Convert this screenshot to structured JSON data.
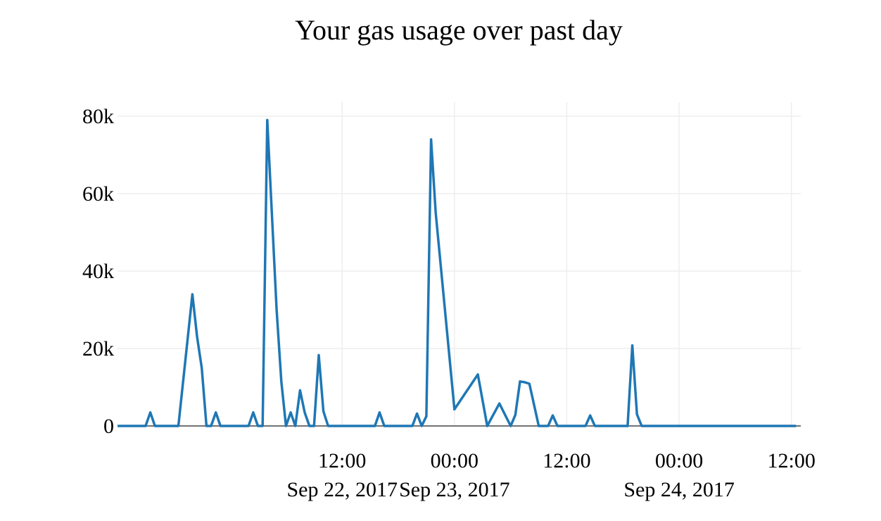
{
  "chart_data": {
    "type": "line",
    "title": "Your gas usage over past day",
    "xlabel": "",
    "ylabel": "",
    "x_unit": "hours",
    "x_reference": "Sep 22, 2017 00:00",
    "xlim": [
      -12,
      61
    ],
    "ylim": [
      0,
      80000
    ],
    "grid": true,
    "legend": "none",
    "line_color": "#1f77b4",
    "y_ticks": [
      {
        "value": 0,
        "label": "0"
      },
      {
        "value": 20000,
        "label": "20k"
      },
      {
        "value": 40000,
        "label": "40k"
      },
      {
        "value": 60000,
        "label": "60k"
      },
      {
        "value": 80000,
        "label": "80k"
      }
    ],
    "x_ticks": [
      {
        "value": 12,
        "label": "12:00",
        "sublabel": "Sep 22, 2017"
      },
      {
        "value": 24,
        "label": "00:00",
        "sublabel": "Sep 23, 2017"
      },
      {
        "value": 36,
        "label": "12:00",
        "sublabel": ""
      },
      {
        "value": 48,
        "label": "00:00",
        "sublabel": "Sep 24, 2017"
      },
      {
        "value": 60,
        "label": "12:00",
        "sublabel": ""
      }
    ],
    "series": [
      {
        "points": [
          [
            -12,
            0
          ],
          [
            -9,
            0
          ],
          [
            -8.5,
            3500
          ],
          [
            -8,
            0
          ],
          [
            -5.5,
            0
          ],
          [
            -4,
            34000
          ],
          [
            -3.5,
            23000
          ],
          [
            -3,
            15000
          ],
          [
            -2.5,
            0
          ],
          [
            -2,
            0
          ],
          [
            -1.5,
            3500
          ],
          [
            -1,
            0
          ],
          [
            2,
            0
          ],
          [
            2.5,
            3500
          ],
          [
            3,
            0
          ],
          [
            3.5,
            0
          ],
          [
            4,
            79000
          ],
          [
            5,
            30000
          ],
          [
            5.5,
            11500
          ],
          [
            6,
            0
          ],
          [
            6.5,
            3500
          ],
          [
            7,
            0
          ],
          [
            7.5,
            9200
          ],
          [
            8,
            3500
          ],
          [
            8.5,
            0
          ],
          [
            9,
            0
          ],
          [
            9.5,
            18300
          ],
          [
            10,
            3800
          ],
          [
            10.5,
            0
          ],
          [
            15.5,
            0
          ],
          [
            16,
            3500
          ],
          [
            16.5,
            0
          ],
          [
            19.5,
            0
          ],
          [
            20,
            3200
          ],
          [
            20.5,
            0
          ],
          [
            21,
            2500
          ],
          [
            21.5,
            74000
          ],
          [
            22,
            55000
          ],
          [
            24,
            4300
          ],
          [
            26.5,
            13300
          ],
          [
            27.5,
            0
          ],
          [
            28.8,
            5800
          ],
          [
            30,
            0
          ],
          [
            30.5,
            2800
          ],
          [
            31,
            11500
          ],
          [
            31.5,
            11300
          ],
          [
            32,
            10900
          ],
          [
            33,
            0
          ],
          [
            34,
            0
          ],
          [
            34.5,
            2700
          ],
          [
            35,
            0
          ],
          [
            38,
            0
          ],
          [
            38.5,
            2700
          ],
          [
            39,
            0
          ],
          [
            42.5,
            0
          ],
          [
            43,
            20800
          ],
          [
            43.5,
            3000
          ],
          [
            44,
            0
          ],
          [
            48,
            0
          ],
          [
            60.5,
            0
          ]
        ]
      }
    ]
  }
}
